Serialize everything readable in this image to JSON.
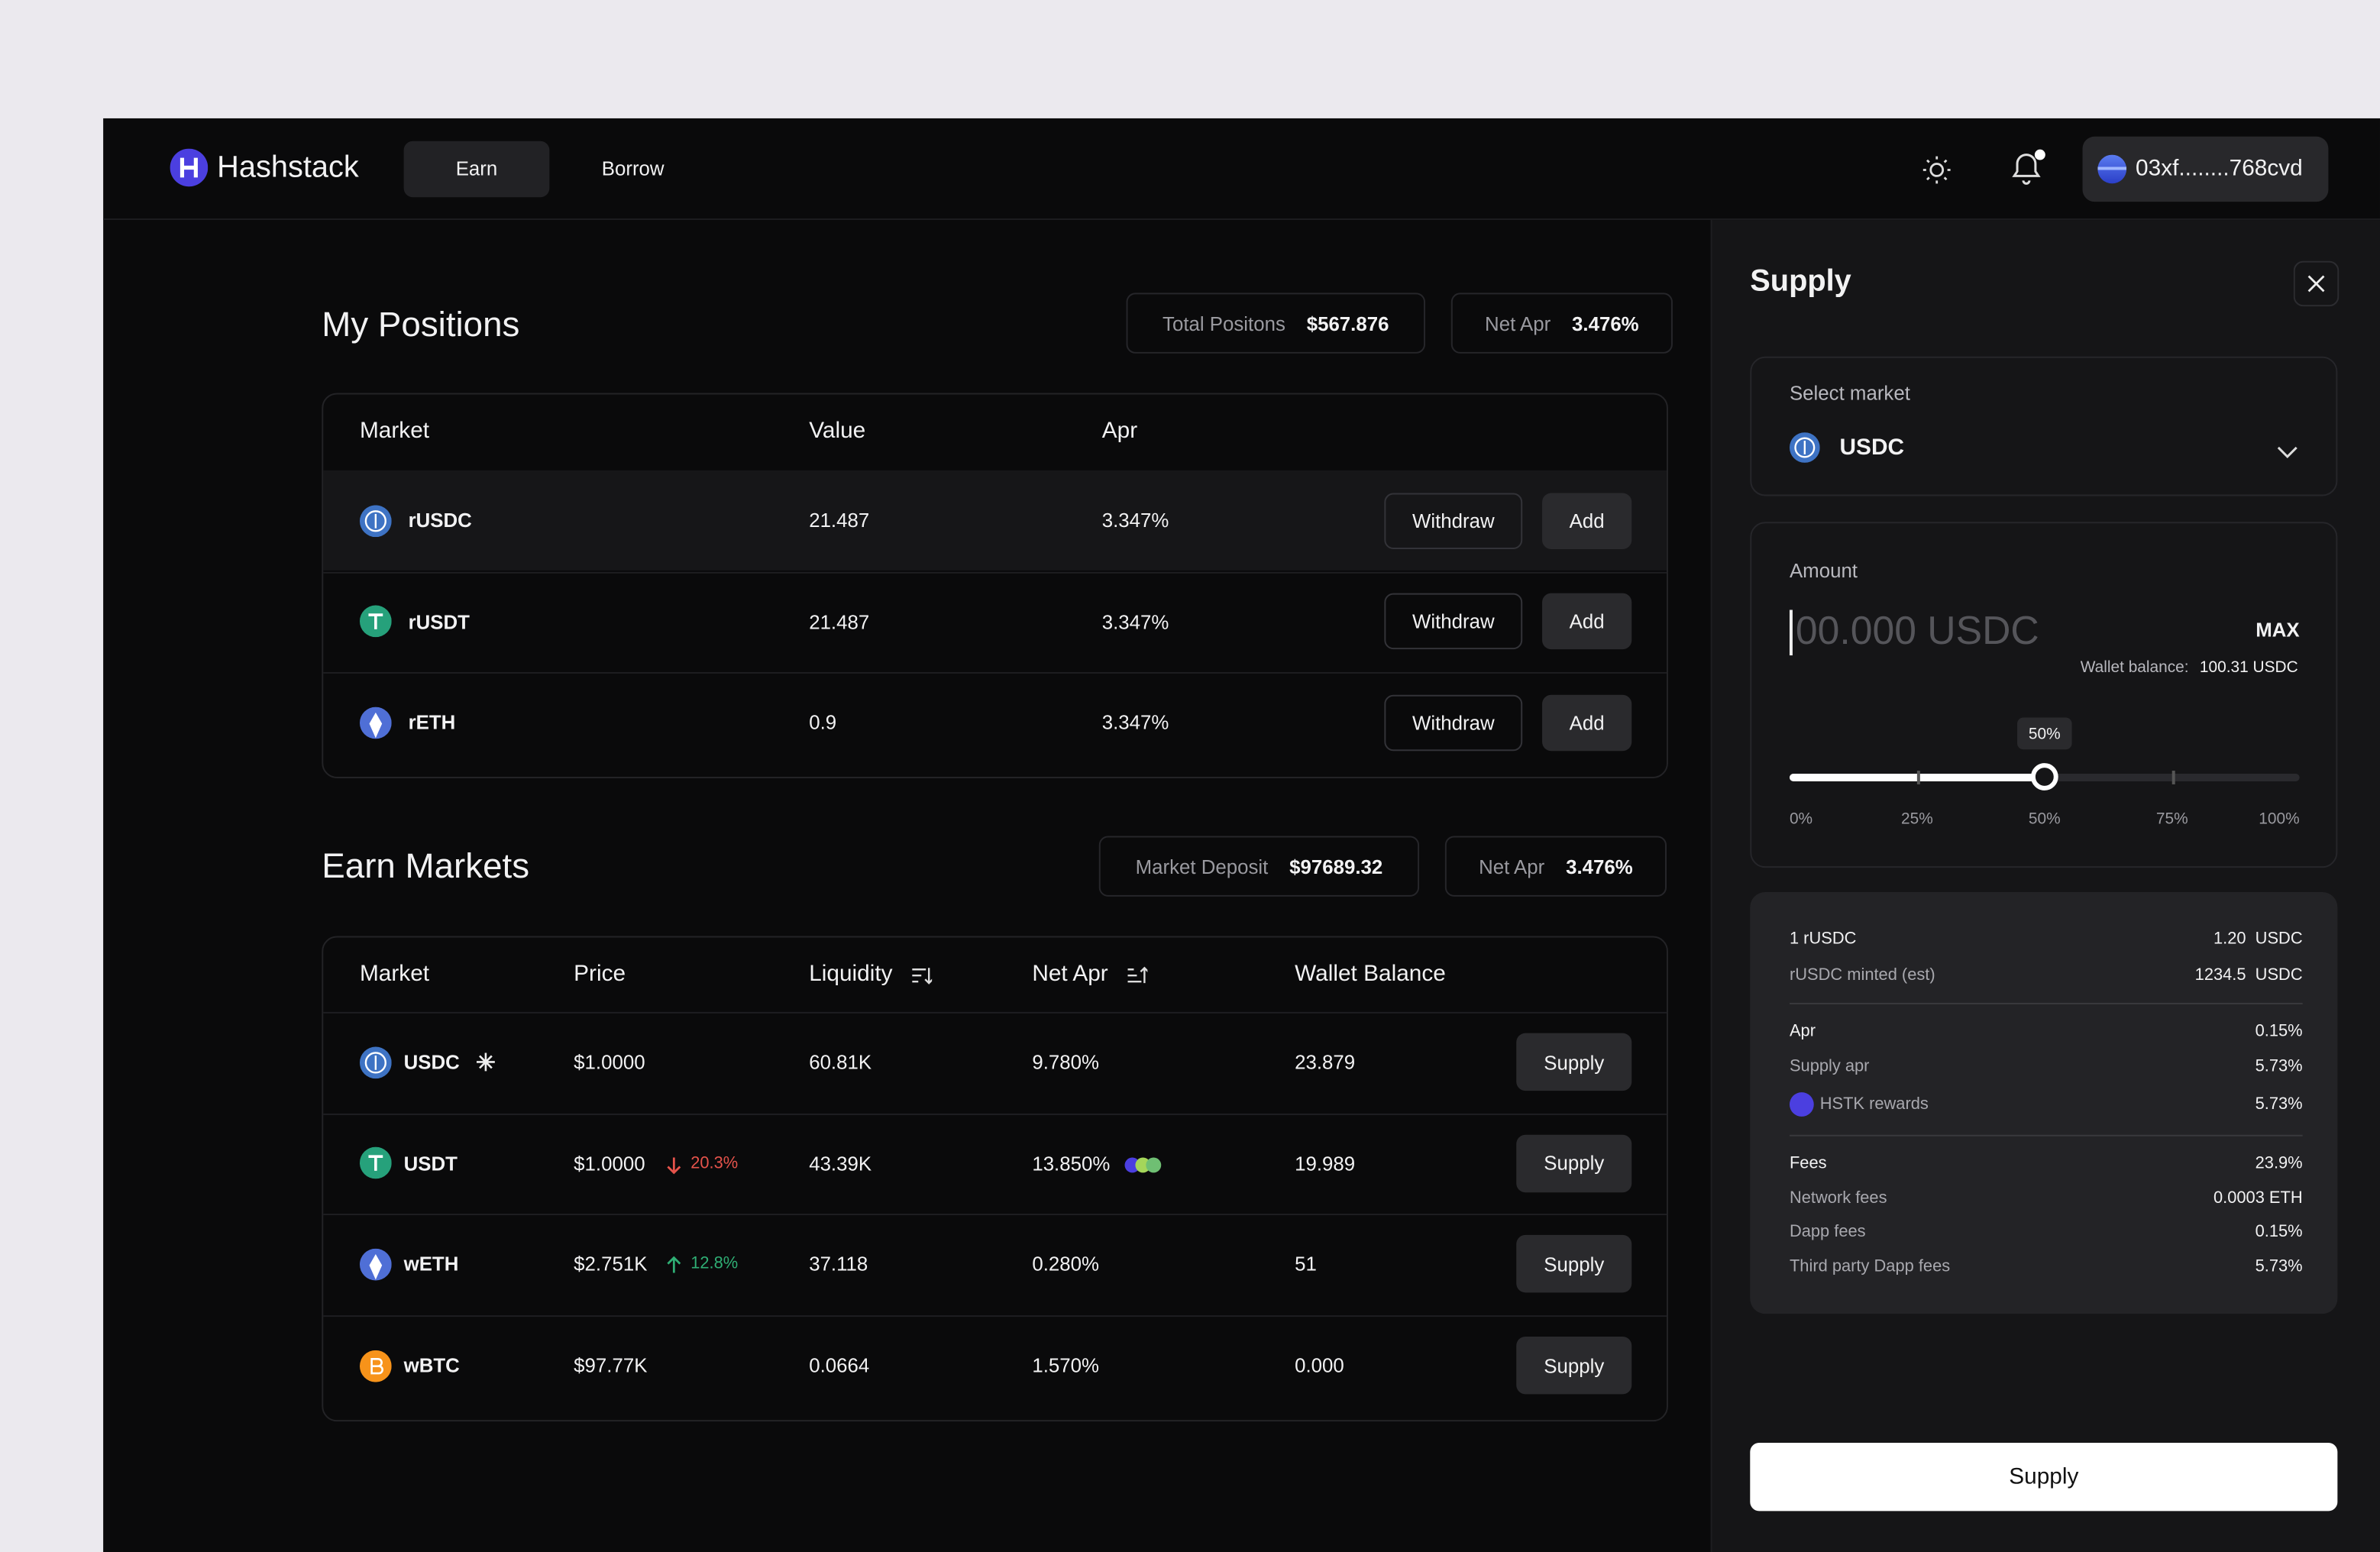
{
  "header": {
    "logo": "Hashstack",
    "nav": [
      "Earn",
      "Borrow"
    ],
    "wallet": "03xf........768cvd"
  },
  "positions": {
    "title": "My Positions",
    "stats": [
      {
        "label": "Total Positons",
        "value": "$567.876"
      },
      {
        "label": "Net Apr",
        "value": "3.476%"
      }
    ],
    "columns": [
      "Market",
      "Value",
      "Apr"
    ],
    "rows": [
      [
        "rUSDC",
        "21.487",
        "3.347%"
      ],
      [
        "rUSDT",
        "21.487",
        "3.347%"
      ],
      [
        "rETH",
        "0.9",
        "3.347%"
      ]
    ],
    "actions": [
      "Withdraw",
      "Add"
    ]
  },
  "markets": {
    "title": "Earn Markets",
    "stats": [
      {
        "label": "Market Deposit",
        "value": "$97689.32"
      },
      {
        "label": "Net Apr",
        "value": "3.476%"
      }
    ],
    "columns": [
      "Market",
      "Price",
      "Liquidity",
      "Net Apr",
      "Wallet Balance"
    ],
    "rows": [
      {
        "market": "USDC",
        "price": "$1.0000",
        "liquidity": "60.81K",
        "net_apr": "9.780%",
        "wallet_balance": "23.879"
      },
      {
        "market": "USDT",
        "price": "$1.0000",
        "change": "20.3%",
        "direction": "down",
        "liquidity": "43.39K",
        "net_apr": "13.850%",
        "wallet_balance": "19.989"
      },
      {
        "market": "wETH",
        "price": "$2.751K",
        "change": "12.8%",
        "direction": "up",
        "liquidity": "37.118",
        "net_apr": "0.280%",
        "wallet_balance": "51"
      },
      {
        "market": "wBTC",
        "price": "$97.77K",
        "liquidity": "0.0664",
        "net_apr": "1.570%",
        "wallet_balance": "0.000"
      }
    ],
    "action": "Supply"
  },
  "supply": {
    "title": "Supply",
    "select_label": "Select market",
    "selected": "USDC",
    "amount_label": "Amount",
    "placeholder": "00.000 USDC",
    "max": "MAX",
    "wallet_label": "Wallet balance:",
    "wallet_value": "100.31 USDC",
    "slider": {
      "value": 50,
      "label": "50%"
    },
    "slider_marks": [
      "0%",
      "25%",
      "50%",
      "75%",
      "100%"
    ],
    "details": [
      [
        [
          "1 rUSDC",
          "1.20  USDC"
        ],
        [
          "rUSDC minted (est)",
          "1234.5  USDC"
        ]
      ],
      [
        [
          "Apr",
          "0.15%"
        ],
        [
          "Supply apr",
          "5.73%"
        ],
        [
          "HSTK rewards",
          "5.73%"
        ]
      ],
      [
        [
          "Fees",
          "23.9%"
        ],
        [
          "Network fees",
          "0.0003 ETH"
        ],
        [
          "Dapp fees",
          "0.15%"
        ],
        [
          "Third party Dapp fees",
          "5.73%"
        ]
      ]
    ],
    "button": "Supply"
  }
}
